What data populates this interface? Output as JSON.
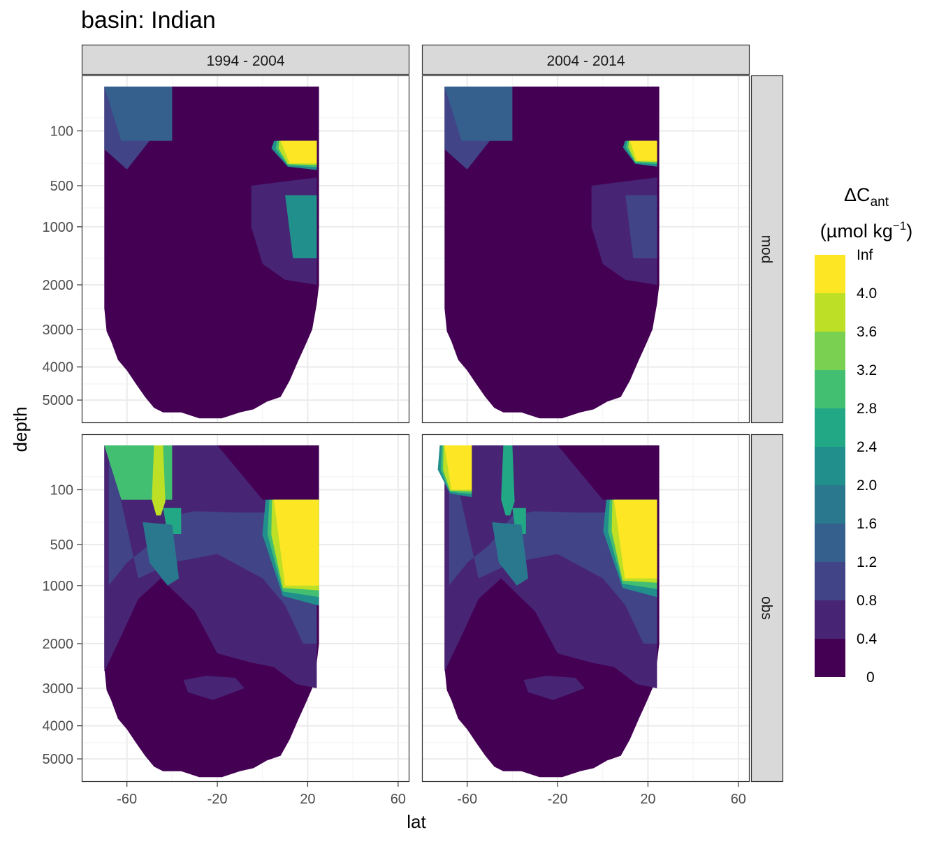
{
  "chart_data": {
    "type": "heatmap",
    "subtype": "filled-contour faceted grid",
    "title": "basin: Indian",
    "xlabel": "lat",
    "ylabel": "depth",
    "x_ticks": [
      -60,
      -20,
      20,
      60
    ],
    "y_ticks": [
      100,
      500,
      1000,
      2000,
      3000,
      4000,
      5000
    ],
    "y_scale": "reversed sqrt",
    "xlim": [
      -80,
      65
    ],
    "ylim": [
      5500,
      0
    ],
    "column_facets": [
      "1994 - 2004",
      "2004 - 2014"
    ],
    "row_facets": [
      "mod",
      "obs"
    ],
    "grid": true,
    "legend": {
      "title_main": "ΔC",
      "title_sub": "ant",
      "title_units": "(µmol kg",
      "title_units_sup": "−1",
      "title_units_end": ")",
      "placement": "right",
      "breaks": [
        "Inf",
        "4.0",
        "3.6",
        "3.2",
        "2.8",
        "2.4",
        "2.0",
        "1.6",
        "1.2",
        "0.8",
        "0.4",
        "0"
      ],
      "colors": [
        "#440154",
        "#482475",
        "#414487",
        "#355f8d",
        "#2a788e",
        "#21908d",
        "#22a884",
        "#43bf71",
        "#7ad151",
        "#bddf26",
        "#fde725"
      ]
    },
    "lat_coverage": [
      -70,
      25
    ],
    "panels": [
      {
        "row": "mod",
        "col": "1994 - 2004",
        "features": [
          {
            "label": "surface >4.0",
            "lat": [
              8,
              24
            ],
            "depth": [
              150,
              300
            ],
            "level": 10
          },
          {
            "label": "mid-depth 1.6-2.4",
            "lat": [
              10,
              24
            ],
            "depth": [
              600,
              1500
            ],
            "level": 5
          },
          {
            "label": "southern surface 1.2",
            "lat": [
              -70,
              -40
            ],
            "depth": [
              0,
              150
            ],
            "level": 3
          }
        ]
      },
      {
        "row": "mod",
        "col": "2004 - 2014",
        "features": [
          {
            "label": "surface >4.0",
            "lat": [
              12,
              24
            ],
            "depth": [
              150,
              280
            ],
            "level": 10
          },
          {
            "label": "mid-depth 0.8-1.2",
            "lat": [
              10,
              24
            ],
            "depth": [
              600,
              1500
            ],
            "level": 2
          },
          {
            "label": "southern surface 1.2",
            "lat": [
              -70,
              -40
            ],
            "depth": [
              0,
              150
            ],
            "level": 3
          }
        ]
      },
      {
        "row": "obs",
        "col": "1994 - 2004",
        "features": [
          {
            "label": "upper ocean >4.0",
            "lat": [
              5,
              25
            ],
            "depth": [
              150,
              1000
            ],
            "level": 10
          },
          {
            "label": "southern surface 2.4-3.6",
            "lat": [
              -70,
              -40
            ],
            "depth": [
              0,
              150
            ],
            "level": 7
          },
          {
            "label": "subsurface 2.8",
            "lat": [
              -44,
              -36
            ],
            "depth": [
              200,
              400
            ],
            "level": 6
          }
        ]
      },
      {
        "row": "obs",
        "col": "2004 - 2014",
        "features": [
          {
            "label": "upper ocean >4.0",
            "lat": [
              5,
              24
            ],
            "depth": [
              150,
              900
            ],
            "level": 10
          },
          {
            "label": "southern surface >4.0",
            "lat": [
              -70,
              -58
            ],
            "depth": [
              0,
              100
            ],
            "level": 10
          },
          {
            "label": "subsurface 2.8",
            "lat": [
              -40,
              -34
            ],
            "depth": [
              200,
              400
            ],
            "level": 6
          }
        ]
      }
    ]
  }
}
